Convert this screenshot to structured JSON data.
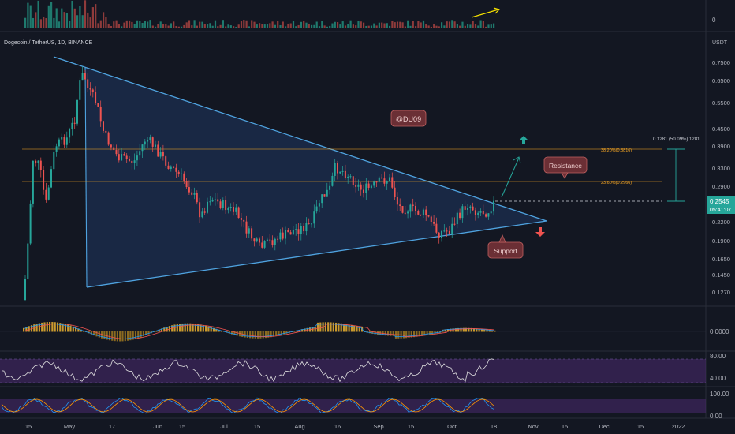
{
  "symbol": {
    "title": "Dogecoin / TetherUS, 1D, BINANCE"
  },
  "volume_pane": {
    "axis_label": "0"
  },
  "price_axis": {
    "currency": "USDT",
    "ticks": [
      "0.7500",
      "0.6500",
      "0.5500",
      "0.4500",
      "0.3900",
      "0.3300",
      "0.2900",
      "0.2500",
      "0.2200",
      "0.1900",
      "0.1650",
      "0.1450",
      "0.1270"
    ],
    "current_price": "0.2545",
    "countdown": "05:41:07"
  },
  "annotations": {
    "watermark": "@DU09",
    "resistance": "Resistance",
    "support": "Support",
    "fib_382": "38.20%(0.3816)",
    "fib_236": "23.60%(0.2966)",
    "measure": "0.1281 (50.09%) 1281"
  },
  "macd_pane": {
    "axis_label": "0.0000"
  },
  "rsi_pane": {
    "ticks": [
      "80.00",
      "40.00"
    ]
  },
  "stoch_pane": {
    "ticks": [
      "100.00",
      "0.00"
    ]
  },
  "time_axis": [
    "15",
    "May",
    "17",
    "Jun",
    "15",
    "Jul",
    "15",
    "Aug",
    "16",
    "Sep",
    "15",
    "Oct",
    "18",
    "Nov",
    "15",
    "Dec",
    "15",
    "2022"
  ],
  "colors": {
    "bg": "#131722",
    "up": "#26a69a",
    "down": "#ef5350",
    "trendline": "#2196f3",
    "fib": "#f5a623",
    "rsi_band": "#4a2a70",
    "label_box": "#6b2f35"
  },
  "chart_data": {
    "type": "candlestick",
    "title": "Dogecoin / TetherUS, 1D, BINANCE",
    "y_scale": "log",
    "ylim": [
      0.115,
      0.82
    ],
    "x": [
      "Apr 15",
      "May 1",
      "May 17",
      "Jun 1",
      "Jun 15",
      "Jul 1",
      "Jul 15",
      "Aug 1",
      "Aug 16",
      "Sep 1",
      "Sep 15",
      "Oct 1",
      "Oct 18"
    ],
    "close": [
      0.17,
      0.45,
      0.5,
      0.38,
      0.31,
      0.22,
      0.18,
      0.21,
      0.33,
      0.29,
      0.21,
      0.21,
      0.2545
    ],
    "levels": {
      "fib_382": 0.3816,
      "fib_236": 0.2966,
      "current": 0.2545
    }
  }
}
